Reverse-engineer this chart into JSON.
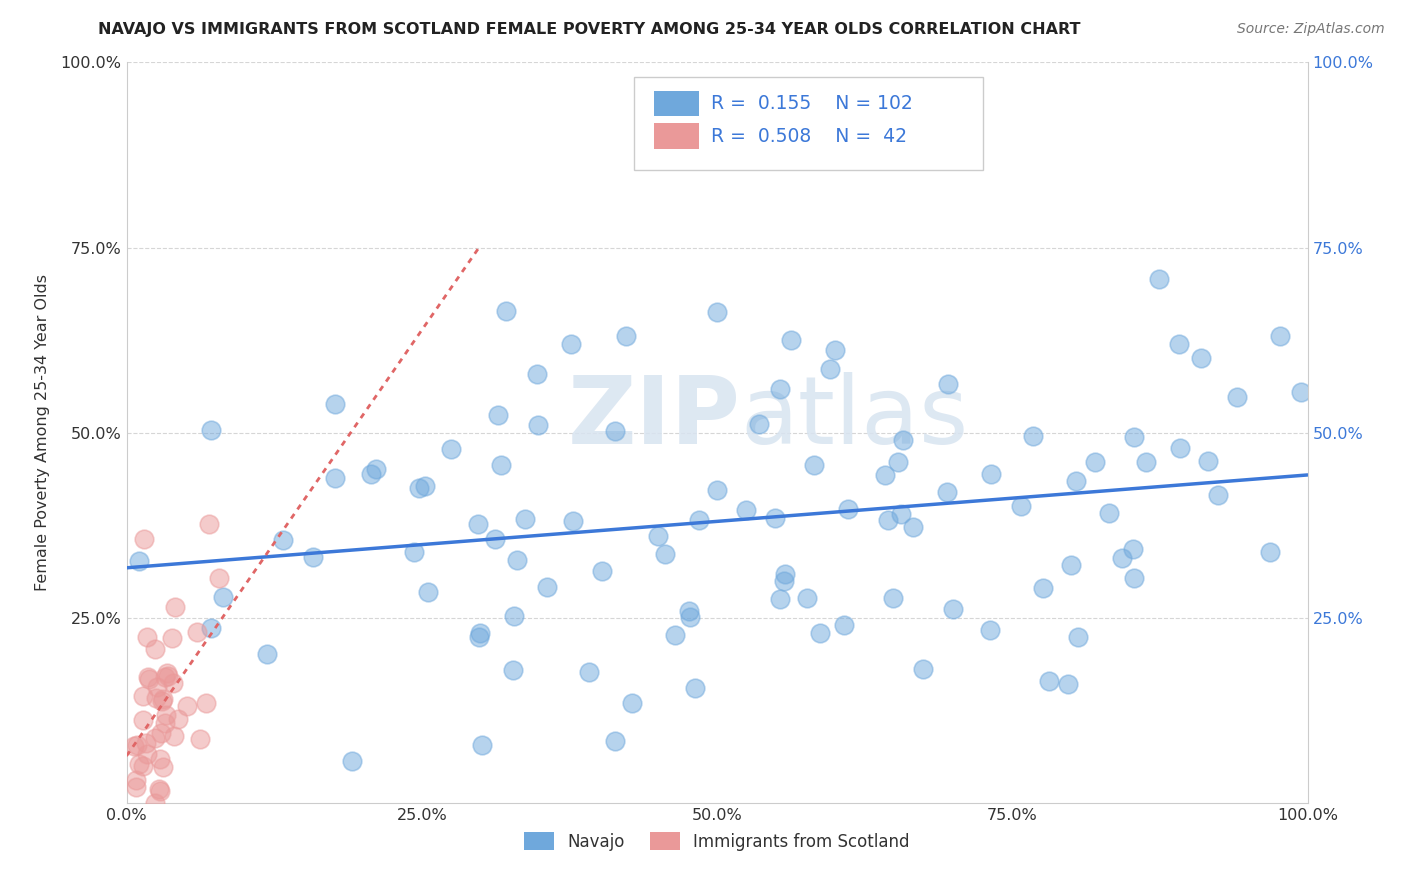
{
  "title": "NAVAJO VS IMMIGRANTS FROM SCOTLAND FEMALE POVERTY AMONG 25-34 YEAR OLDS CORRELATION CHART",
  "source": "Source: ZipAtlas.com",
  "ylabel": "Female Poverty Among 25-34 Year Olds",
  "xlim": [
    0.0,
    1.0
  ],
  "ylim": [
    0.0,
    1.0
  ],
  "xtick_labels": [
    "0.0%",
    "25.0%",
    "50.0%",
    "75.0%",
    "100.0%"
  ],
  "xtick_vals": [
    0.0,
    0.25,
    0.5,
    0.75,
    1.0
  ],
  "ytick_labels": [
    "",
    "25.0%",
    "50.0%",
    "75.0%",
    "100.0%"
  ],
  "ytick_vals": [
    0.0,
    0.25,
    0.5,
    0.75,
    1.0
  ],
  "right_ytick_labels": [
    "",
    "25.0%",
    "50.0%",
    "75.0%",
    "100.0%"
  ],
  "navajo_color": "#6fa8dc",
  "scotland_color": "#ea9999",
  "navajo_line_color": "#3c78d8",
  "scotland_line_color": "#e06666",
  "navajo_R": 0.155,
  "navajo_N": 102,
  "scotland_R": 0.508,
  "scotland_N": 42,
  "legend_labels": [
    "Navajo",
    "Immigrants from Scotland"
  ],
  "watermark_zip": "ZIP",
  "watermark_atlas": "atlas",
  "grid_color": "#cccccc",
  "background_color": "#ffffff"
}
